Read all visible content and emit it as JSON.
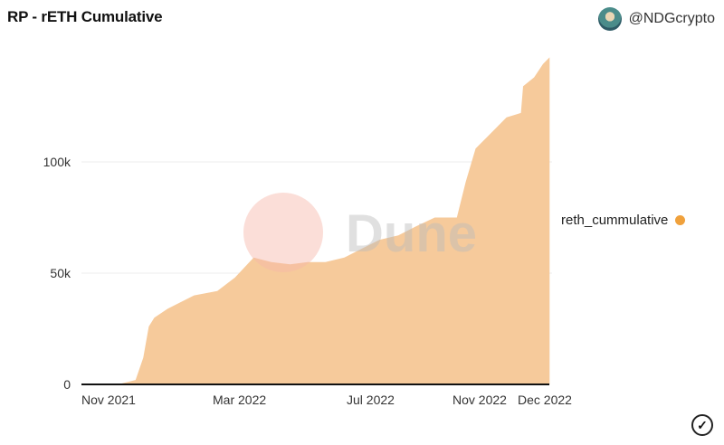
{
  "header": {
    "title": "RP - rETH Cumulative",
    "author": "@NDGcrypto"
  },
  "watermark": "Dune",
  "colors": {
    "fill": "#f6ca9b",
    "legend_dot": "#f0a13c"
  },
  "chart_data": {
    "type": "area",
    "title": "RP - rETH Cumulative",
    "xlabel": "",
    "ylabel": "",
    "x_ticks": [
      "Nov 2021",
      "Mar 2022",
      "Jul 2022",
      "Nov 2022",
      "Dec 2022"
    ],
    "y_ticks": [
      "0",
      "50k",
      "100k"
    ],
    "ylim": [
      0,
      150000
    ],
    "xlim": [
      "2021-11-01",
      "2022-12-31"
    ],
    "grid": true,
    "legend_placement": "right",
    "series": [
      {
        "name": "reth_cummulative",
        "points": [
          [
            "2021-11-01",
            0
          ],
          [
            "2021-12-04",
            0
          ],
          [
            "2021-12-20",
            2000
          ],
          [
            "2021-12-27",
            12000
          ],
          [
            "2022-01-01",
            26000
          ],
          [
            "2022-01-06",
            30000
          ],
          [
            "2022-01-18",
            34000
          ],
          [
            "2022-01-30",
            37000
          ],
          [
            "2022-02-11",
            40000
          ],
          [
            "2022-03-04",
            42000
          ],
          [
            "2022-03-20",
            48000
          ],
          [
            "2022-04-06",
            57000
          ],
          [
            "2022-04-22",
            55000
          ],
          [
            "2022-05-09",
            54000
          ],
          [
            "2022-05-25",
            55000
          ],
          [
            "2022-06-10",
            55000
          ],
          [
            "2022-06-27",
            57000
          ],
          [
            "2022-07-13",
            61000
          ],
          [
            "2022-07-29",
            65000
          ],
          [
            "2022-08-15",
            67000
          ],
          [
            "2022-08-31",
            71000
          ],
          [
            "2022-09-17",
            75000
          ],
          [
            "2022-10-07",
            75000
          ],
          [
            "2022-10-15",
            91000
          ],
          [
            "2022-10-24",
            106000
          ],
          [
            "2022-11-05",
            112000
          ],
          [
            "2022-11-21",
            120000
          ],
          [
            "2022-12-04",
            122000
          ],
          [
            "2022-12-06",
            134000
          ],
          [
            "2022-12-16",
            138000
          ],
          [
            "2022-12-24",
            144000
          ],
          [
            "2022-12-30",
            147000
          ]
        ]
      }
    ]
  }
}
